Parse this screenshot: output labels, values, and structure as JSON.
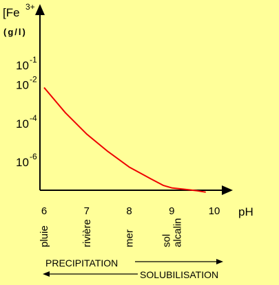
{
  "chart_data": {
    "type": "line",
    "ylabel_main": "[Fe",
    "ylabel_sup": "3+",
    "ylabel_unit": "(g/l)",
    "xlabel": "pH",
    "xlim": [
      6,
      10
    ],
    "y_log_exponent_range": [
      -7.8,
      0
    ],
    "y_ticks": [
      {
        "base": "10",
        "exp": "-1",
        "value": -1
      },
      {
        "base": "10",
        "exp": "-2",
        "value": -2
      },
      {
        "base": "10",
        "exp": "-4",
        "value": -4
      },
      {
        "base": "10",
        "exp": "-6",
        "value": -6
      }
    ],
    "x_ticks": [
      {
        "label": "6",
        "value": 6
      },
      {
        "label": "7",
        "value": 7
      },
      {
        "label": "8",
        "value": 8
      },
      {
        "label": "9",
        "value": 9
      },
      {
        "label": "10",
        "value": 10
      }
    ],
    "environments": [
      {
        "lines": [
          "pluie"
        ],
        "ph": 6
      },
      {
        "lines": [
          "rivière"
        ],
        "ph": 7
      },
      {
        "lines": [
          "mer"
        ],
        "ph": 8
      },
      {
        "lines": [
          "sol",
          "alcalin"
        ],
        "ph": 9
      }
    ],
    "series": [
      {
        "color": "#ee0000",
        "x": [
          6.0,
          6.5,
          7.0,
          7.5,
          8.0,
          8.5,
          8.8,
          9.0,
          9.3,
          9.6,
          9.8
        ],
        "y": [
          -2.5,
          -3.8,
          -4.9,
          -5.8,
          -6.6,
          -7.2,
          -7.55,
          -7.68,
          -7.75,
          -7.83,
          -7.9
        ]
      }
    ],
    "annotations": {
      "precipitation": "PRECIPITATION",
      "solubilisation": "SOLUBILISATION"
    }
  }
}
